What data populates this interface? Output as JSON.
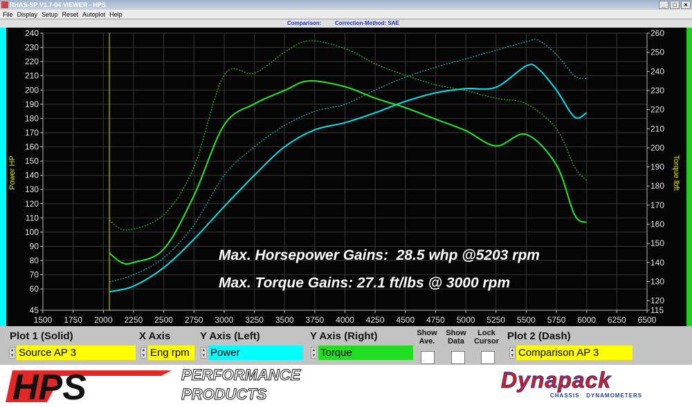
{
  "window": {
    "title": "RHAS-SP V1.7-04  VIEWER - HPS",
    "minimize": "_",
    "maximize": "□",
    "close": "×"
  },
  "menu": [
    "File",
    "Display",
    "Setup",
    "Reset",
    "Autoplot",
    "Help"
  ],
  "info": {
    "comparison": "Comparison:",
    "correction": "Correction-Method: SAE"
  },
  "colors": {
    "power": "#00e5ee",
    "torque": "#22ee22",
    "cursor": "#e8e800",
    "accent_left": "#00ffff",
    "accent_right": "#22cc22"
  },
  "annotations": [
    "Max. Horsepower Gains:  28.5 whp @5203 rpm",
    "Max. Torque Gains: 27.1 ft/lbs @ 3000 rpm"
  ],
  "chart_data": {
    "type": "line",
    "xlabel": "",
    "ylabel_left": "Power HP",
    "ylabel_right": "Torque lbft",
    "xlim": [
      1500,
      6500
    ],
    "ylim_left": [
      45,
      240
    ],
    "ylim_right": [
      115,
      260
    ],
    "x_ticks": [
      1500,
      1750,
      2000,
      2250,
      2500,
      2750,
      3000,
      3250,
      3500,
      3750,
      4000,
      4250,
      4500,
      4750,
      5000,
      5250,
      5500,
      5750,
      6000,
      6250,
      6500
    ],
    "y_left_ticks": [
      240,
      230,
      220,
      210,
      200,
      190,
      180,
      170,
      160,
      150,
      140,
      130,
      120,
      110,
      100,
      90,
      80,
      70,
      60,
      45
    ],
    "y_right_ticks": [
      260,
      250,
      240,
      230,
      220,
      210,
      200,
      190,
      180,
      170,
      160,
      150,
      140,
      130,
      120,
      115
    ],
    "grid": true,
    "cursor_x": 2050,
    "series": [
      {
        "axis": "left",
        "style": "solid",
        "color": "#00e5ee",
        "x": [
          2050,
          2250,
          2500,
          2750,
          3000,
          3250,
          3500,
          3750,
          4000,
          4250,
          4500,
          4750,
          5000,
          5250,
          5500,
          5600,
          5750,
          5900,
          6000
        ],
        "y": [
          58,
          62,
          75,
          95,
          118,
          140,
          160,
          172,
          177,
          184,
          192,
          198,
          201,
          202,
          217,
          215,
          200,
          181,
          184
        ]
      },
      {
        "axis": "left",
        "style": "dash",
        "color": "#00e5ee",
        "x": [
          2050,
          2250,
          2500,
          2750,
          3000,
          3250,
          3500,
          3750,
          4000,
          4250,
          4500,
          4750,
          5000,
          5250,
          5500,
          5600,
          5750,
          5900,
          6000
        ],
        "y": [
          65,
          70,
          82,
          105,
          140,
          160,
          175,
          185,
          190,
          200,
          209,
          216,
          222,
          228,
          234,
          235,
          225,
          210,
          208
        ]
      },
      {
        "axis": "right",
        "style": "solid",
        "color": "#22ee22",
        "x": [
          2050,
          2150,
          2250,
          2500,
          2750,
          3000,
          3250,
          3500,
          3700,
          4000,
          4250,
          4500,
          4750,
          5000,
          5250,
          5500,
          5750,
          5900,
          6000
        ],
        "y": [
          145,
          140,
          140,
          147,
          175,
          212,
          223,
          230,
          235,
          232,
          226,
          221,
          215,
          209,
          201,
          207,
          191,
          165,
          161
        ]
      },
      {
        "axis": "right",
        "style": "dash",
        "color": "#22ee22",
        "x": [
          2050,
          2200,
          2500,
          2750,
          3000,
          3250,
          3500,
          3700,
          4000,
          4250,
          4500,
          4750,
          5000,
          5250,
          5500,
          5750,
          5900,
          6000
        ],
        "y": [
          162,
          157,
          165,
          190,
          238,
          239,
          250,
          256,
          252,
          244,
          238,
          233,
          230,
          226,
          223,
          210,
          190,
          183
        ]
      }
    ]
  },
  "panel": {
    "plot1": {
      "label": "Plot 1 (Solid)",
      "value": "Source AP 3"
    },
    "xaxis": {
      "label": "X Axis",
      "value": "Eng rpm"
    },
    "yleft": {
      "label": "Y Axis (Left)",
      "value": "Power"
    },
    "yright": {
      "label": "Y Axis (Right)",
      "value": "Torque"
    },
    "show_ave": {
      "label1": "Show",
      "label2": "Ave.",
      "checked": false
    },
    "show_data": {
      "label1": "Show",
      "label2": "Data",
      "checked": false
    },
    "lock_cursor": {
      "label1": "Lock",
      "label2": "Cursor",
      "checked": false
    },
    "plot2": {
      "label": "Plot 2 (Dash)",
      "value": "Comparison AP 3"
    }
  },
  "footer": {
    "hps_logo": "HPS",
    "hps_tagline1": "PERFORMANCE",
    "hps_tagline2": "PRODUCTS",
    "dynapack_logo": "Dynapack",
    "dynapack_tagline": "CHASSIS   DYNAMOMETERS"
  }
}
